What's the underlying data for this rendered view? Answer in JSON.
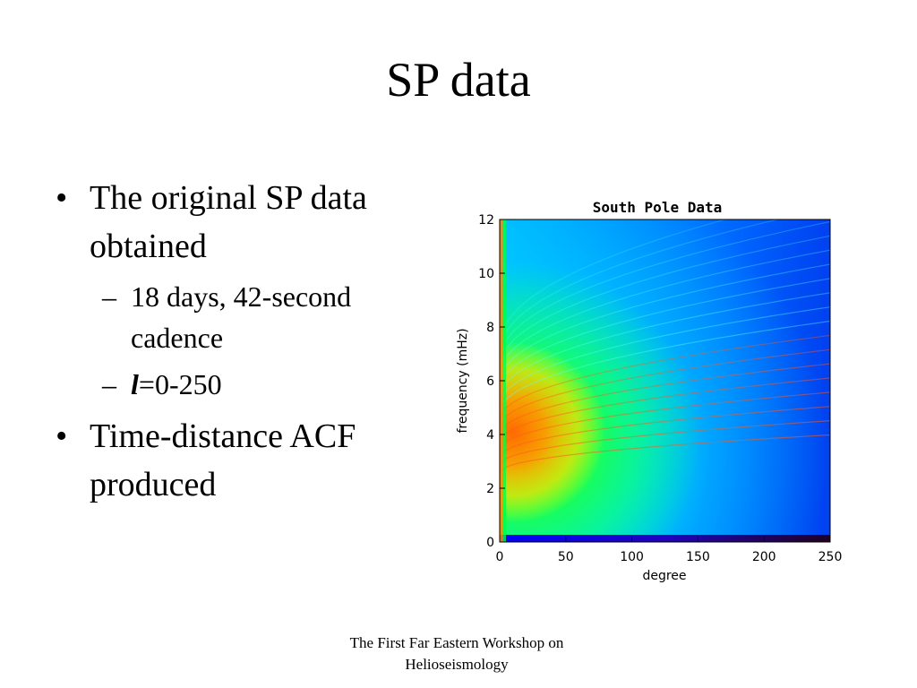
{
  "slide": {
    "title": "SP data",
    "bullets": [
      {
        "text": "The original SP data obtained",
        "sub": [
          {
            "text": "18 days, 42-second cadence"
          },
          {
            "prefix": "l",
            "text": "=0-250"
          }
        ]
      },
      {
        "text": "Time-distance ACF produced"
      }
    ],
    "footer": "The First Far Eastern Workshop on Helioseismology"
  },
  "chart_data": {
    "type": "heatmap",
    "title": "South Pole Data",
    "xlabel": "degree",
    "ylabel": "frequency (mHz)",
    "xlim": [
      0,
      250
    ],
    "ylim": [
      0,
      12
    ],
    "xticks": [
      "0",
      "50",
      "100",
      "150",
      "200",
      "250"
    ],
    "yticks": [
      "0",
      "2",
      "4",
      "6",
      "8",
      "10",
      "12"
    ],
    "colorscale": [
      "#000033",
      "#0000ff",
      "#00ccff",
      "#00ff66",
      "#ffff00",
      "#ff8800",
      "#cc0000"
    ],
    "features": {
      "high_power_band_mHz": [
        3,
        6
      ],
      "ridge_count_estimate": 18,
      "notes": "p-mode ridges fanning out from low degree, peak power near 3-5 mHz at degree 0-60"
    }
  }
}
